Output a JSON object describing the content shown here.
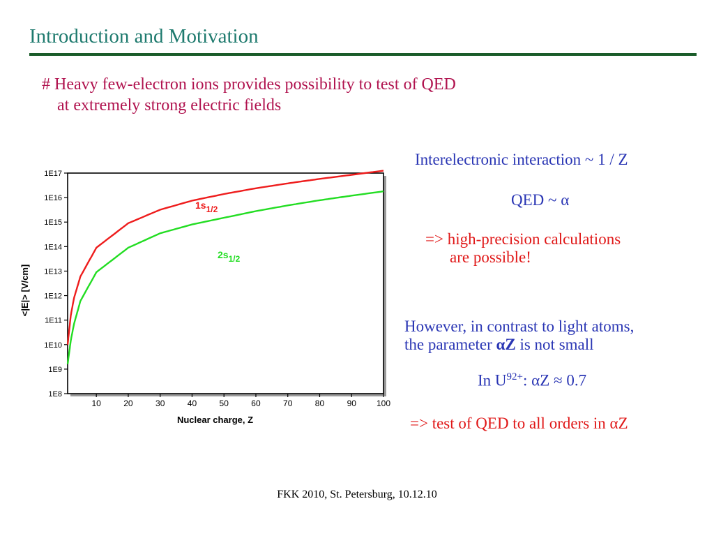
{
  "slide": {
    "title": "Introduction and Motivation",
    "bullet_line1": "# Heavy few-electron ions provides possibility to test of QED",
    "bullet_line2": "at extremely strong electric fields"
  },
  "right_panel": {
    "interelectronic": "Interelectronic interaction ~ 1 / Z",
    "qed": "QED ~ α",
    "highprec_line1": "=> high-precision calculations",
    "highprec_line2": "are possible!",
    "however_line1": "However, in contrast to light atoms,",
    "however_line2_pre": "the parameter ",
    "however_line2_param": "αZ",
    "however_line2_post": " is not small",
    "u92_pre": "In U",
    "u92_sup": "92+",
    "u92_post": ": αZ ≈ 0.7",
    "conclusion": "=> test of QED to all orders in αZ"
  },
  "footer": {
    "text": "FKK 2010, St. Petersburg, 10.12.10"
  },
  "colors": {
    "title": "#1e7a6e",
    "rule": "#1a5c2a",
    "bullet": "#b0124e",
    "blue_text": "#2a36b4",
    "red_text": "#e01818",
    "series_1s": "#ee1c1c",
    "series_2s": "#22dd22"
  },
  "chart_data": {
    "type": "line",
    "xlabel": "Nuclear charge, Z",
    "ylabel": "<|E|> [V/cm]",
    "xlim": [
      1,
      100
    ],
    "ylim_log10": [
      8,
      17
    ],
    "y_scale": "log",
    "x_ticks": [
      10,
      20,
      30,
      40,
      50,
      60,
      70,
      80,
      90,
      100
    ],
    "y_tick_labels": [
      "1E8",
      "1E9",
      "1E10",
      "1E11",
      "1E12",
      "1E13",
      "1E14",
      "1E15",
      "1E16",
      "1E17"
    ],
    "grid": false,
    "series": [
      {
        "name_main": "1s",
        "name_sub": "1/2",
        "color": "#ee1c1c",
        "x": [
          1,
          2,
          3,
          5,
          10,
          20,
          30,
          40,
          50,
          60,
          70,
          80,
          90,
          100
        ],
        "y": [
          10000000000.0,
          160000000000.0,
          800000000000.0,
          6000000000000.0,
          90000000000000.0,
          900000000000000.0,
          3200000000000000.0,
          7500000000000000.0,
          1.4e+16,
          2.4e+16,
          3.8e+16,
          5.8e+16,
          8.5e+16,
          1.25e+17
        ]
      },
      {
        "name_main": "2s",
        "name_sub": "1/2",
        "color": "#22dd22",
        "x": [
          1,
          2,
          3,
          5,
          10,
          20,
          30,
          40,
          50,
          60,
          70,
          80,
          90,
          100
        ],
        "y": [
          1600000000.0,
          15000000000.0,
          70000000000.0,
          600000000000.0,
          9000000000000.0,
          90000000000000.0,
          350000000000000.0,
          800000000000000.0,
          1500000000000000.0,
          2800000000000000.0,
          4800000000000000.0,
          7800000000000000.0,
          1.2e+16,
          1.8e+16
        ]
      }
    ]
  }
}
